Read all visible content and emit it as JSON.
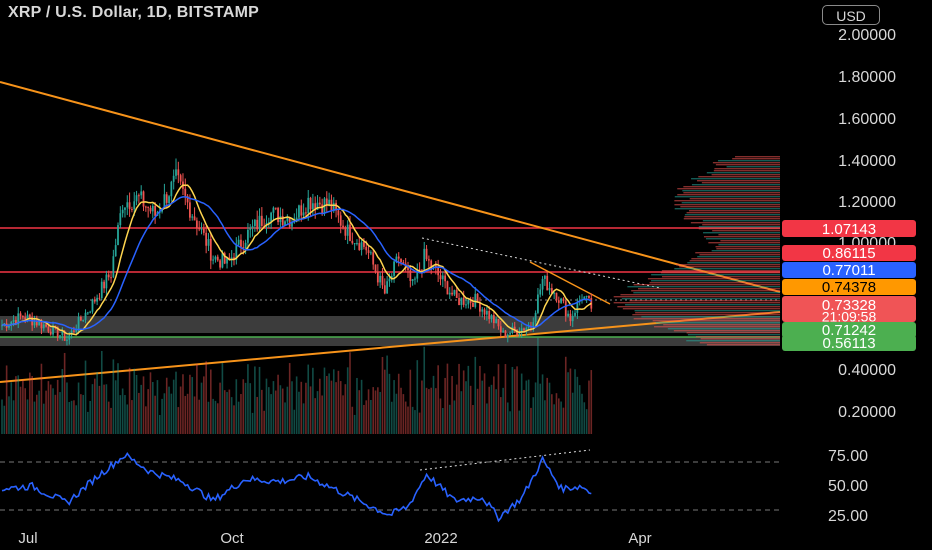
{
  "header": {
    "title": "XRP / U.S. Dollar, 1D, BITSTAMP",
    "currency_label": "USD"
  },
  "colors": {
    "background": "#000000",
    "up": "#26a69a",
    "down": "#ef5350",
    "trendline": "#f7931a",
    "resistance": "#f23645",
    "ma_fast": "#ffd54f",
    "ma_slow": "#2962ff",
    "rsi": "#2962ff",
    "zone": "#9e9e9e",
    "support": "#4caf50"
  },
  "chart_data": [
    {
      "type": "line",
      "title": "XRP / U.S. Dollar, 1D, BITSTAMP",
      "xlabel": "",
      "ylabel": "",
      "x_tick_labels": [
        "Jul",
        "Oct",
        "2022",
        "Apr"
      ],
      "y_tick_labels": [
        "2.00000",
        "1.80000",
        "1.60000",
        "1.40000",
        "1.20000",
        "1.00000",
        "0.40000",
        "0.20000"
      ],
      "ylim": [
        0.1,
        2.1
      ],
      "price_series": {
        "name": "",
        "x": [
          "2021-06-22",
          "2021-07-01",
          "2021-07-10",
          "2021-07-20",
          "2021-07-30",
          "2021-08-08",
          "2021-08-13",
          "2021-08-20",
          "2021-08-27",
          "2021-09-05",
          "2021-09-15",
          "2021-09-21",
          "2021-09-27",
          "2021-10-06",
          "2021-10-15",
          "2021-10-25",
          "2021-11-01",
          "2021-11-10",
          "2021-11-18",
          "2021-11-26",
          "2021-12-04",
          "2021-12-10",
          "2021-12-16",
          "2021-12-21",
          "2021-12-27",
          "2022-01-04",
          "2022-01-12",
          "2022-01-20",
          "2022-01-24",
          "2022-01-30",
          "2022-02-05",
          "2022-02-10",
          "2022-02-16",
          "2022-02-22",
          "2022-02-27",
          "2022-03-03"
        ],
        "y": [
          0.66,
          0.7,
          0.66,
          0.6,
          0.74,
          0.89,
          1.22,
          1.24,
          1.16,
          1.33,
          1.1,
          0.96,
          0.93,
          1.07,
          1.17,
          1.14,
          1.23,
          1.21,
          1.08,
          1.0,
          0.8,
          0.96,
          0.83,
          0.96,
          0.88,
          0.77,
          0.77,
          0.68,
          0.62,
          0.64,
          0.66,
          0.86,
          0.8,
          0.69,
          0.79,
          0.74
        ]
      },
      "horizontal_levels": [
        {
          "label": "1.07143",
          "value": 1.07143,
          "color": "#f23645"
        },
        {
          "label": "0.86115",
          "value": 0.86115,
          "color": "#f23645"
        },
        {
          "label": "0.77011",
          "value": 0.77011,
          "color": "#2962ff"
        },
        {
          "label": "0.74378",
          "value": 0.74378,
          "color": "#ff9800"
        },
        {
          "label": "0.73328",
          "value": 0.73328,
          "color": "#f05456",
          "countdown": "21:09:58"
        },
        {
          "label": "0.71242",
          "value": 0.71242,
          "color": "#4caf50"
        },
        {
          "label": "0.56113",
          "value": 0.56113,
          "color": "#4caf50"
        }
      ]
    },
    {
      "type": "line",
      "title": "",
      "y_tick_labels": [
        "75.00",
        "50.00",
        "25.00"
      ],
      "ylim": [
        20,
        85
      ],
      "reference_levels": [
        70,
        30
      ],
      "rsi_series": {
        "name": "",
        "x": [
          "2021-06-22",
          "2021-07-05",
          "2021-07-20",
          "2021-08-02",
          "2021-08-14",
          "2021-08-25",
          "2021-09-08",
          "2021-09-21",
          "2021-10-05",
          "2021-10-20",
          "2021-11-01",
          "2021-11-12",
          "2021-11-25",
          "2021-12-06",
          "2021-12-14",
          "2021-12-22",
          "2022-01-03",
          "2022-01-15",
          "2022-01-22",
          "2022-02-01",
          "2022-02-10",
          "2022-02-18",
          "2022-02-27",
          "2022-03-03"
        ],
        "y": [
          52,
          54,
          40,
          62,
          80,
          66,
          58,
          42,
          60,
          58,
          62,
          52,
          40,
          30,
          37,
          64,
          42,
          45,
          28,
          44,
          76,
          52,
          54,
          48
        ]
      }
    }
  ]
}
